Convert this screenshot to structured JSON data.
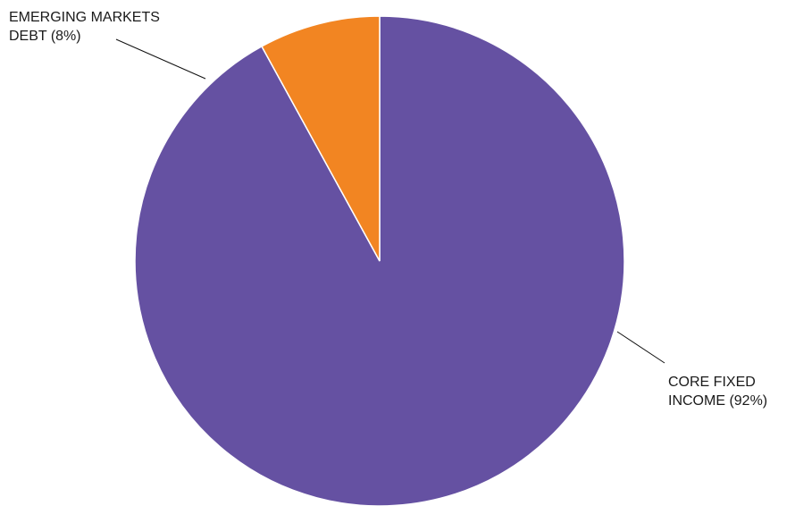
{
  "chart_data": {
    "type": "pie",
    "title": "",
    "slices": [
      {
        "name": "CORE FIXED INCOME",
        "value": 92,
        "color": "#6551A2",
        "label_lines": [
          "CORE FIXED",
          "INCOME (92%)"
        ]
      },
      {
        "name": "EMERGING MARKETS DEBT",
        "value": 8,
        "color": "#F28522",
        "label_lines": [
          "EMERGING MARKETS",
          "DEBT (8%)"
        ]
      }
    ],
    "start_angle_deg": 0,
    "direction": "clockwise"
  }
}
